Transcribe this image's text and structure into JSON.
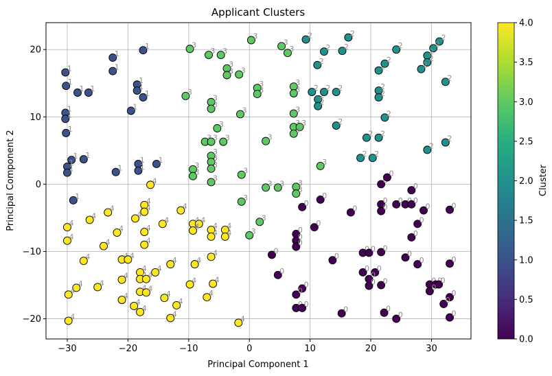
{
  "chart_data": {
    "type": "scatter",
    "title": "Applicant Clusters",
    "xlabel": "Principal Component 1",
    "ylabel": "Principal Component 2",
    "xlim": [
      -33.5,
      36.5
    ],
    "ylim": [
      -23,
      24
    ],
    "xticks": [
      -30,
      -20,
      -10,
      0,
      10,
      20,
      30
    ],
    "yticks": [
      -20,
      -10,
      0,
      10,
      20
    ],
    "grid": true,
    "colormap": "viridis",
    "colorbar": {
      "label": "Cluster",
      "min": 0.0,
      "max": 4.0,
      "ticks": [
        "0.0",
        "0.5",
        "1.0",
        "1.5",
        "2.0",
        "2.5",
        "3.0",
        "3.5",
        "4.0"
      ]
    },
    "cluster_colors": {
      "0": "#440154",
      "1": "#3b528b",
      "2": "#21918c",
      "3": "#5ec962",
      "4": "#fde725"
    },
    "point_edge_color": "#000000",
    "point_label_color": "#8c8c8c",
    "points": [
      {
        "x": -30.3,
        "y": 16.6,
        "cluster": 1
      },
      {
        "x": -30.2,
        "y": 14.6,
        "cluster": 1
      },
      {
        "x": -28.3,
        "y": 13.6,
        "cluster": 1
      },
      {
        "x": -26.5,
        "y": 13.6,
        "cluster": 1
      },
      {
        "x": -22.5,
        "y": 18.8,
        "cluster": 1
      },
      {
        "x": -22.5,
        "y": 16.8,
        "cluster": 1
      },
      {
        "x": -17.5,
        "y": 19.9,
        "cluster": 1
      },
      {
        "x": -18.5,
        "y": 14.8,
        "cluster": 1
      },
      {
        "x": -18.5,
        "y": 13.9,
        "cluster": 1
      },
      {
        "x": -17.5,
        "y": 12.9,
        "cluster": 1
      },
      {
        "x": -30.3,
        "y": 10.6,
        "cluster": 1
      },
      {
        "x": -30.3,
        "y": 9.7,
        "cluster": 1
      },
      {
        "x": -30.2,
        "y": 7.6,
        "cluster": 1
      },
      {
        "x": -19.5,
        "y": 10.9,
        "cluster": 1
      },
      {
        "x": -29.3,
        "y": 3.6,
        "cluster": 1
      },
      {
        "x": -27.3,
        "y": 3.7,
        "cluster": 1
      },
      {
        "x": -30.0,
        "y": 2.6,
        "cluster": 1
      },
      {
        "x": -30.0,
        "y": 1.7,
        "cluster": 1
      },
      {
        "x": -22.0,
        "y": 1.8,
        "cluster": 1
      },
      {
        "x": -18.3,
        "y": 3.0,
        "cluster": 1
      },
      {
        "x": -18.3,
        "y": 2.0,
        "cluster": 1
      },
      {
        "x": -15.3,
        "y": 3.0,
        "cluster": 1
      },
      {
        "x": -29.0,
        "y": -2.4,
        "cluster": 1
      },
      {
        "x": 11.2,
        "y": 17.7,
        "cluster": 2
      },
      {
        "x": 9.3,
        "y": 21.5,
        "cluster": 2
      },
      {
        "x": 16.3,
        "y": 21.8,
        "cluster": 2
      },
      {
        "x": 12.3,
        "y": 19.7,
        "cluster": 2
      },
      {
        "x": 15.3,
        "y": 19.8,
        "cluster": 2
      },
      {
        "x": 24.2,
        "y": 20.0,
        "cluster": 2
      },
      {
        "x": 21.3,
        "y": 16.9,
        "cluster": 2
      },
      {
        "x": 22.3,
        "y": 17.9,
        "cluster": 2
      },
      {
        "x": 31.3,
        "y": 21.2,
        "cluster": 2
      },
      {
        "x": 30.3,
        "y": 20.2,
        "cluster": 2
      },
      {
        "x": 29.3,
        "y": 19.1,
        "cluster": 2
      },
      {
        "x": 29.3,
        "y": 18.1,
        "cluster": 2
      },
      {
        "x": 28.3,
        "y": 17.1,
        "cluster": 2
      },
      {
        "x": 10.3,
        "y": 13.7,
        "cluster": 2
      },
      {
        "x": 11.3,
        "y": 12.6,
        "cluster": 2
      },
      {
        "x": 11.3,
        "y": 11.6,
        "cluster": 2
      },
      {
        "x": 12.3,
        "y": 13.7,
        "cluster": 2
      },
      {
        "x": 14.3,
        "y": 13.7,
        "cluster": 2
      },
      {
        "x": 21.3,
        "y": 13.9,
        "cluster": 2
      },
      {
        "x": 21.3,
        "y": 12.9,
        "cluster": 2
      },
      {
        "x": 32.3,
        "y": 15.2,
        "cluster": 2
      },
      {
        "x": 22.3,
        "y": 9.9,
        "cluster": 2
      },
      {
        "x": 14.3,
        "y": 8.7,
        "cluster": 2
      },
      {
        "x": 19.3,
        "y": 6.9,
        "cluster": 2
      },
      {
        "x": 21.3,
        "y": 6.9,
        "cluster": 2
      },
      {
        "x": 29.3,
        "y": 5.1,
        "cluster": 2
      },
      {
        "x": 32.3,
        "y": 6.2,
        "cluster": 2
      },
      {
        "x": 18.3,
        "y": 3.9,
        "cluster": 2
      },
      {
        "x": 20.3,
        "y": 3.9,
        "cluster": 2
      },
      {
        "x": -9.8,
        "y": 20.1,
        "cluster": 3
      },
      {
        "x": 0.3,
        "y": 21.4,
        "cluster": 3
      },
      {
        "x": 5.3,
        "y": 20.5,
        "cluster": 3
      },
      {
        "x": 6.3,
        "y": 19.5,
        "cluster": 3
      },
      {
        "x": -6.7,
        "y": 19.2,
        "cluster": 3
      },
      {
        "x": -4.7,
        "y": 19.2,
        "cluster": 3
      },
      {
        "x": -3.7,
        "y": 17.2,
        "cluster": 3
      },
      {
        "x": -3.7,
        "y": 16.2,
        "cluster": 3
      },
      {
        "x": -1.7,
        "y": 16.3,
        "cluster": 3
      },
      {
        "x": 1.3,
        "y": 14.3,
        "cluster": 3
      },
      {
        "x": 1.3,
        "y": 13.4,
        "cluster": 3
      },
      {
        "x": 7.3,
        "y": 14.5,
        "cluster": 3
      },
      {
        "x": 7.3,
        "y": 13.5,
        "cluster": 3
      },
      {
        "x": -10.5,
        "y": 13.1,
        "cluster": 3
      },
      {
        "x": -6.3,
        "y": 12.2,
        "cluster": 3
      },
      {
        "x": -6.3,
        "y": 11.2,
        "cluster": 3
      },
      {
        "x": -1.5,
        "y": 10.4,
        "cluster": 3
      },
      {
        "x": 7.3,
        "y": 10.5,
        "cluster": 3
      },
      {
        "x": -5.3,
        "y": 8.3,
        "cluster": 3
      },
      {
        "x": 7.3,
        "y": 8.5,
        "cluster": 3
      },
      {
        "x": 8.3,
        "y": 8.5,
        "cluster": 3
      },
      {
        "x": 7.3,
        "y": 7.5,
        "cluster": 3
      },
      {
        "x": -7.3,
        "y": 6.3,
        "cluster": 3
      },
      {
        "x": -6.3,
        "y": 6.3,
        "cluster": 3
      },
      {
        "x": -4.3,
        "y": 6.3,
        "cluster": 3
      },
      {
        "x": 2.7,
        "y": 6.4,
        "cluster": 3
      },
      {
        "x": -6.3,
        "y": 4.2,
        "cluster": 3
      },
      {
        "x": -6.3,
        "y": 3.3,
        "cluster": 3
      },
      {
        "x": -6.3,
        "y": 2.3,
        "cluster": 3
      },
      {
        "x": -9.3,
        "y": 2.2,
        "cluster": 3
      },
      {
        "x": -9.3,
        "y": 1.2,
        "cluster": 3
      },
      {
        "x": -1.3,
        "y": 1.4,
        "cluster": 3
      },
      {
        "x": -6.3,
        "y": 0.3,
        "cluster": 3
      },
      {
        "x": 11.7,
        "y": 2.7,
        "cluster": 3
      },
      {
        "x": 2.7,
        "y": -0.5,
        "cluster": 3
      },
      {
        "x": 4.7,
        "y": -0.5,
        "cluster": 3
      },
      {
        "x": 7.7,
        "y": -0.4,
        "cluster": 3
      },
      {
        "x": 7.7,
        "y": -1.4,
        "cluster": 3
      },
      {
        "x": -1.3,
        "y": -2.6,
        "cluster": 3
      },
      {
        "x": 1.7,
        "y": -5.6,
        "cluster": 3
      },
      {
        "x": 0.0,
        "y": -7.6,
        "cluster": 3
      },
      {
        "x": 21.7,
        "y": 0.0,
        "cluster": 0
      },
      {
        "x": 22.7,
        "y": 1.0,
        "cluster": 0
      },
      {
        "x": 26.7,
        "y": -0.9,
        "cluster": 0
      },
      {
        "x": 11.7,
        "y": -2.3,
        "cluster": 0
      },
      {
        "x": 8.7,
        "y": -3.4,
        "cluster": 0
      },
      {
        "x": 21.7,
        "y": -3.0,
        "cluster": 0
      },
      {
        "x": 21.7,
        "y": -4.0,
        "cluster": 0
      },
      {
        "x": 24.2,
        "y": -3.0,
        "cluster": 0
      },
      {
        "x": 25.7,
        "y": -3.0,
        "cluster": 0
      },
      {
        "x": 26.7,
        "y": -3.0,
        "cluster": 0
      },
      {
        "x": 28.7,
        "y": -3.9,
        "cluster": 0
      },
      {
        "x": 33.0,
        "y": -3.8,
        "cluster": 0
      },
      {
        "x": 16.7,
        "y": -4.2,
        "cluster": 0
      },
      {
        "x": 10.7,
        "y": -6.4,
        "cluster": 0
      },
      {
        "x": 27.7,
        "y": -5.9,
        "cluster": 0
      },
      {
        "x": 7.7,
        "y": -7.4,
        "cluster": 0
      },
      {
        "x": 7.7,
        "y": -8.4,
        "cluster": 0
      },
      {
        "x": 7.7,
        "y": -9.3,
        "cluster": 0
      },
      {
        "x": 26.7,
        "y": -7.9,
        "cluster": 0
      },
      {
        "x": 3.7,
        "y": -10.5,
        "cluster": 0
      },
      {
        "x": 18.7,
        "y": -10.2,
        "cluster": 0
      },
      {
        "x": 19.7,
        "y": -10.2,
        "cluster": 0
      },
      {
        "x": 21.7,
        "y": -10.1,
        "cluster": 0
      },
      {
        "x": 25.7,
        "y": -10.9,
        "cluster": 0
      },
      {
        "x": 13.7,
        "y": -11.3,
        "cluster": 0
      },
      {
        "x": 27.7,
        "y": -11.9,
        "cluster": 0
      },
      {
        "x": 33.0,
        "y": -11.8,
        "cluster": 0
      },
      {
        "x": 18.7,
        "y": -13.1,
        "cluster": 0
      },
      {
        "x": 20.7,
        "y": -13.1,
        "cluster": 0
      },
      {
        "x": 4.7,
        "y": -13.5,
        "cluster": 0
      },
      {
        "x": 19.7,
        "y": -14.1,
        "cluster": 0
      },
      {
        "x": 19.7,
        "y": -15.1,
        "cluster": 0
      },
      {
        "x": 21.7,
        "y": -15.0,
        "cluster": 0
      },
      {
        "x": 29.7,
        "y": -14.9,
        "cluster": 0
      },
      {
        "x": 30.7,
        "y": -14.9,
        "cluster": 0
      },
      {
        "x": 31.2,
        "y": -14.9,
        "cluster": 0
      },
      {
        "x": 29.7,
        "y": -15.9,
        "cluster": 0
      },
      {
        "x": 8.7,
        "y": -15.5,
        "cluster": 0
      },
      {
        "x": 7.7,
        "y": -16.4,
        "cluster": 0
      },
      {
        "x": 33.0,
        "y": -16.8,
        "cluster": 0
      },
      {
        "x": 32.0,
        "y": -17.8,
        "cluster": 0
      },
      {
        "x": 7.7,
        "y": -18.4,
        "cluster": 0
      },
      {
        "x": 8.7,
        "y": -18.4,
        "cluster": 0
      },
      {
        "x": 15.2,
        "y": -19.2,
        "cluster": 0
      },
      {
        "x": 22.2,
        "y": -19.1,
        "cluster": 0
      },
      {
        "x": 33.0,
        "y": -19.8,
        "cluster": 0
      },
      {
        "x": 24.2,
        "y": -20.0,
        "cluster": 0
      },
      {
        "x": -16.3,
        "y": -0.1,
        "cluster": 4
      },
      {
        "x": -17.3,
        "y": -3.1,
        "cluster": 4
      },
      {
        "x": -17.3,
        "y": -4.1,
        "cluster": 4
      },
      {
        "x": -18.8,
        "y": -5.1,
        "cluster": 4
      },
      {
        "x": -11.3,
        "y": -3.9,
        "cluster": 4
      },
      {
        "x": -23.3,
        "y": -4.2,
        "cluster": 4
      },
      {
        "x": -26.3,
        "y": -5.3,
        "cluster": 4
      },
      {
        "x": -14.3,
        "y": -5.9,
        "cluster": 4
      },
      {
        "x": -9.3,
        "y": -5.9,
        "cluster": 4
      },
      {
        "x": -8.3,
        "y": -5.9,
        "cluster": 4
      },
      {
        "x": -21.8,
        "y": -7.2,
        "cluster": 4
      },
      {
        "x": -17.3,
        "y": -7.1,
        "cluster": 4
      },
      {
        "x": -9.3,
        "y": -6.9,
        "cluster": 4
      },
      {
        "x": -6.3,
        "y": -6.8,
        "cluster": 4
      },
      {
        "x": -6.3,
        "y": -7.8,
        "cluster": 4
      },
      {
        "x": -4.0,
        "y": -6.8,
        "cluster": 4
      },
      {
        "x": -4.0,
        "y": -7.8,
        "cluster": 4
      },
      {
        "x": -30.0,
        "y": -6.4,
        "cluster": 4
      },
      {
        "x": -30.0,
        "y": -8.4,
        "cluster": 4
      },
      {
        "x": -17.3,
        "y": -9.0,
        "cluster": 4
      },
      {
        "x": -24.0,
        "y": -9.2,
        "cluster": 4
      },
      {
        "x": -6.3,
        "y": -10.8,
        "cluster": 4
      },
      {
        "x": -27.3,
        "y": -11.4,
        "cluster": 4
      },
      {
        "x": -21.0,
        "y": -11.2,
        "cluster": 4
      },
      {
        "x": -20.0,
        "y": -11.2,
        "cluster": 4
      },
      {
        "x": -13.0,
        "y": -11.9,
        "cluster": 4
      },
      {
        "x": -9.0,
        "y": -11.9,
        "cluster": 4
      },
      {
        "x": -18.0,
        "y": -13.1,
        "cluster": 4
      },
      {
        "x": -15.5,
        "y": -13.1,
        "cluster": 4
      },
      {
        "x": -18.0,
        "y": -14.1,
        "cluster": 4
      },
      {
        "x": -17.0,
        "y": -14.1,
        "cluster": 4
      },
      {
        "x": -21.0,
        "y": -14.2,
        "cluster": 4
      },
      {
        "x": -9.8,
        "y": -14.9,
        "cluster": 4
      },
      {
        "x": -6.0,
        "y": -14.8,
        "cluster": 4
      },
      {
        "x": -25.0,
        "y": -15.3,
        "cluster": 4
      },
      {
        "x": -28.5,
        "y": -15.4,
        "cluster": 4
      },
      {
        "x": -18.0,
        "y": -16.0,
        "cluster": 4
      },
      {
        "x": -17.0,
        "y": -16.1,
        "cluster": 4
      },
      {
        "x": -29.8,
        "y": -16.4,
        "cluster": 4
      },
      {
        "x": -14.0,
        "y": -16.9,
        "cluster": 4
      },
      {
        "x": -21.0,
        "y": -17.2,
        "cluster": 4
      },
      {
        "x": -7.0,
        "y": -16.8,
        "cluster": 4
      },
      {
        "x": -12.0,
        "y": -18.0,
        "cluster": 4
      },
      {
        "x": -19.0,
        "y": -18.1,
        "cluster": 4
      },
      {
        "x": -18.0,
        "y": -19.0,
        "cluster": 4
      },
      {
        "x": -13.0,
        "y": -19.9,
        "cluster": 4
      },
      {
        "x": -29.8,
        "y": -20.3,
        "cluster": 4
      },
      {
        "x": -1.8,
        "y": -20.6,
        "cluster": 4
      }
    ]
  }
}
